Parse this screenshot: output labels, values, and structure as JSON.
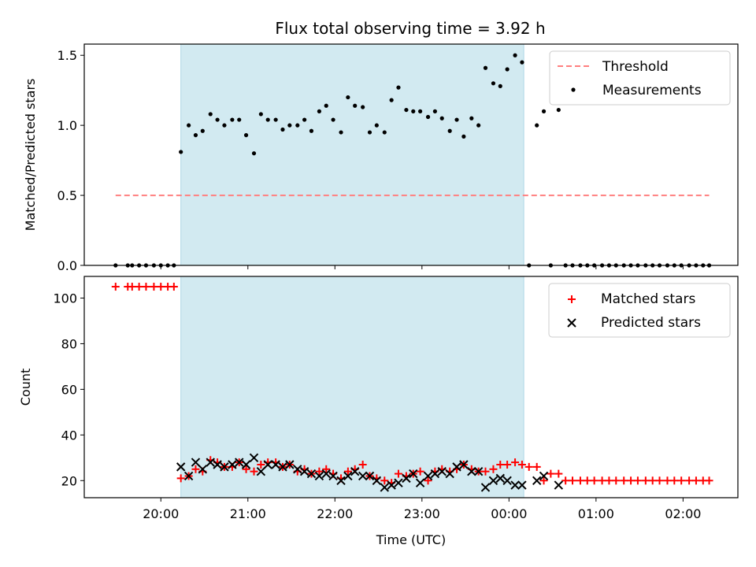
{
  "figure_title": "Flux total observing time = 3.92 h",
  "colors": {
    "shade": "#add8e6",
    "threshold": "#ff7f7f",
    "measurement": "#000000",
    "matched": "#ff0000",
    "predicted": "#000000"
  },
  "chart_data": [
    {
      "type": "scatter",
      "panel": "top",
      "title": "Flux total observing time = 3.92 h",
      "xlabel": "",
      "ylabel": "Matched/Predicted stars",
      "x_units": "hours after 20:00 UTC",
      "xlim": [
        -0.88,
        6.63
      ],
      "ylim": [
        0,
        1.58
      ],
      "yticks": [
        0.0,
        0.5,
        1.0,
        1.5
      ],
      "ytick_labels": [
        "0.0",
        "0.5",
        "1.0",
        "1.5"
      ],
      "shaded_region": [
        0.23,
        4.17
      ],
      "legend_position": "top-right",
      "series": [
        {
          "name": "Threshold",
          "kind": "dashed-line",
          "x": [
            -0.52,
            6.3
          ],
          "y": [
            0.5,
            0.5
          ]
        },
        {
          "name": "Measurements",
          "kind": "points",
          "x": [
            -0.52,
            -0.38,
            -0.33,
            -0.25,
            -0.17,
            -0.08,
            0.0,
            0.08,
            0.15,
            0.23,
            0.32,
            0.4,
            0.48,
            0.57,
            0.65,
            0.73,
            0.82,
            0.9,
            0.98,
            1.07,
            1.15,
            1.23,
            1.32,
            1.4,
            1.48,
            1.57,
            1.65,
            1.73,
            1.82,
            1.9,
            1.98,
            2.07,
            2.15,
            2.23,
            2.32,
            2.4,
            2.48,
            2.57,
            2.65,
            2.73,
            2.82,
            2.9,
            2.98,
            3.07,
            3.15,
            3.23,
            3.32,
            3.4,
            3.48,
            3.57,
            3.65,
            3.73,
            3.82,
            3.9,
            3.98,
            4.07,
            4.15,
            4.23,
            4.32,
            4.4,
            4.48,
            4.57,
            4.65,
            4.73,
            4.82,
            4.9,
            4.98,
            5.07,
            5.15,
            5.23,
            5.32,
            5.4,
            5.48,
            5.57,
            5.65,
            5.73,
            5.82,
            5.9,
            5.98,
            6.07,
            6.15,
            6.23,
            6.3
          ],
          "y": [
            0,
            0,
            0,
            0,
            0,
            0,
            0,
            0,
            0,
            0.81,
            1.0,
            0.93,
            0.96,
            1.08,
            1.04,
            1.0,
            1.04,
            1.04,
            0.93,
            0.8,
            1.08,
            1.04,
            1.04,
            0.97,
            1.0,
            1.0,
            1.04,
            0.96,
            1.1,
            1.14,
            1.04,
            0.95,
            1.2,
            1.14,
            1.13,
            0.95,
            1.0,
            0.95,
            1.18,
            1.27,
            1.11,
            1.1,
            1.1,
            1.06,
            1.1,
            1.05,
            0.96,
            1.04,
            0.92,
            1.05,
            1.0,
            1.41,
            1.3,
            1.28,
            1.4,
            1.5,
            1.45,
            0,
            1.0,
            1.1,
            0,
            1.11,
            0,
            0,
            0,
            0,
            0,
            0,
            0,
            0,
            0,
            0,
            0,
            0,
            0,
            0,
            0,
            0,
            0,
            0,
            0,
            0,
            0
          ]
        }
      ],
      "xtick_labels": []
    },
    {
      "type": "scatter",
      "panel": "bottom",
      "xlabel": "Time (UTC)",
      "ylabel": "Count",
      "x_units": "hours after 20:00 UTC",
      "xlim": [
        -0.88,
        6.63
      ],
      "ylim": [
        12.5,
        109.5
      ],
      "yticks": [
        20,
        40,
        60,
        80,
        100
      ],
      "ytick_labels": [
        "20",
        "40",
        "60",
        "80",
        "100"
      ],
      "xticks": [
        0,
        1,
        2,
        3,
        4,
        5,
        6
      ],
      "xtick_labels": [
        "20:00",
        "21:00",
        "22:00",
        "23:00",
        "00:00",
        "01:00",
        "02:00"
      ],
      "shaded_region": [
        0.23,
        4.17
      ],
      "legend_position": "top-right",
      "series": [
        {
          "name": "Matched stars",
          "marker": "plus",
          "x": [
            -0.52,
            -0.38,
            -0.33,
            -0.25,
            -0.17,
            -0.08,
            0.0,
            0.08,
            0.15,
            0.23,
            0.32,
            0.4,
            0.48,
            0.57,
            0.65,
            0.73,
            0.82,
            0.9,
            0.98,
            1.07,
            1.15,
            1.23,
            1.32,
            1.4,
            1.48,
            1.57,
            1.65,
            1.73,
            1.82,
            1.9,
            1.98,
            2.07,
            2.15,
            2.23,
            2.32,
            2.4,
            2.48,
            2.57,
            2.65,
            2.73,
            2.82,
            2.9,
            2.98,
            3.07,
            3.15,
            3.23,
            3.32,
            3.4,
            3.48,
            3.57,
            3.65,
            3.73,
            3.82,
            3.9,
            3.98,
            4.07,
            4.15,
            4.23,
            4.32,
            4.4,
            4.48,
            4.57,
            4.65,
            4.73,
            4.82,
            4.9,
            4.98,
            5.07,
            5.15,
            5.23,
            5.32,
            5.4,
            5.48,
            5.57,
            5.65,
            5.73,
            5.82,
            5.9,
            5.98,
            6.07,
            6.15,
            6.23,
            6.3
          ],
          "y": [
            105,
            105,
            105,
            105,
            105,
            105,
            105,
            105,
            105,
            21,
            22,
            25,
            24,
            29,
            28,
            26,
            26,
            28,
            25,
            24,
            27,
            28,
            28,
            26,
            27,
            24,
            25,
            23,
            24,
            25,
            23,
            21,
            24,
            25,
            27,
            22,
            21,
            20,
            19,
            23,
            22,
            23,
            24,
            20,
            24,
            25,
            24,
            25,
            27,
            25,
            24,
            24,
            25,
            27,
            27,
            28,
            27,
            26,
            26,
            20,
            23,
            23,
            20,
            20,
            20,
            20,
            20,
            20,
            20,
            20,
            20,
            20,
            20,
            20,
            20,
            20,
            20,
            20,
            20,
            20,
            20,
            20,
            20
          ]
        },
        {
          "name": "Predicted stars",
          "marker": "x",
          "x": [
            0.23,
            0.32,
            0.4,
            0.48,
            0.57,
            0.65,
            0.73,
            0.82,
            0.9,
            0.98,
            1.07,
            1.15,
            1.23,
            1.32,
            1.4,
            1.48,
            1.57,
            1.65,
            1.73,
            1.82,
            1.9,
            1.98,
            2.07,
            2.15,
            2.23,
            2.32,
            2.4,
            2.48,
            2.57,
            2.65,
            2.73,
            2.82,
            2.9,
            2.98,
            3.07,
            3.15,
            3.23,
            3.32,
            3.4,
            3.48,
            3.57,
            3.65,
            3.73,
            3.82,
            3.9,
            3.98,
            4.07,
            4.15,
            4.32,
            4.4,
            4.57
          ],
          "y": [
            26,
            22,
            28,
            25,
            28,
            27,
            26,
            27,
            28,
            27,
            30,
            24,
            27,
            27,
            26,
            27,
            25,
            24,
            23,
            22,
            23,
            22,
            20,
            22,
            24,
            22,
            22,
            20,
            17,
            18,
            19,
            21,
            23,
            19,
            22,
            23,
            24,
            23,
            26,
            27,
            24,
            24,
            17,
            20,
            21,
            20,
            18,
            18,
            20,
            22,
            18
          ]
        }
      ]
    }
  ]
}
